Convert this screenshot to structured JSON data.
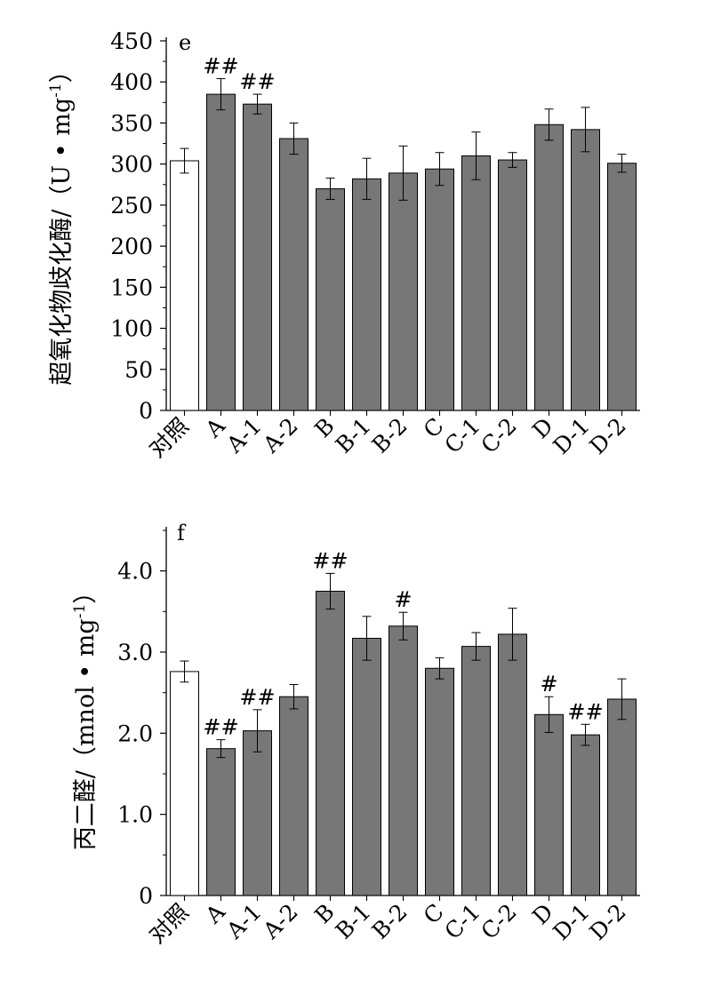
{
  "chart_data": [
    {
      "type": "bar",
      "panel_label": "e",
      "ylabel": "超氧化物歧化酶/（U • mg-1）",
      "ylabel_main": "超氧化物歧化酶/（U • mg",
      "ylabel_sup": "-1",
      "ylabel_close": "）",
      "categories": [
        "对照",
        "A",
        "A-1",
        "A-2",
        "B",
        "B-1",
        "B-2",
        "C",
        "C-1",
        "C-2",
        "D",
        "D-1",
        "D-2"
      ],
      "values": [
        304,
        385,
        373,
        331,
        270,
        282,
        289,
        294,
        310,
        305,
        348,
        342,
        301
      ],
      "errors": [
        15,
        19,
        12,
        19,
        13,
        25,
        33,
        20,
        29,
        9,
        19,
        27,
        11
      ],
      "significance": [
        "",
        "##",
        "##",
        "",
        "",
        "",
        "",
        "",
        "",
        "",
        "",
        "",
        ""
      ],
      "ylim": [
        0,
        450
      ],
      "yticks": [
        0,
        50,
        100,
        150,
        200,
        250,
        300,
        350,
        400,
        450
      ],
      "ytick_labels": [
        "0",
        "50",
        "100",
        "150",
        "200",
        "250",
        "300",
        "350",
        "400",
        "450"
      ],
      "grid": false,
      "colors": {
        "control": "#ffffff",
        "treatment": "#777777",
        "edge": "#000000"
      }
    },
    {
      "type": "bar",
      "panel_label": "f",
      "ylabel": "丙二醛/（mnol • mg-1）",
      "ylabel_main": "丙二醛/（mnol • mg",
      "ylabel_sup": "-1",
      "ylabel_close": "）",
      "categories": [
        "对照",
        "A",
        "A-1",
        "A-2",
        "B",
        "B-1",
        "B-2",
        "C",
        "C-1",
        "C-2",
        "D",
        "D-1",
        "D-2"
      ],
      "values": [
        2.76,
        1.81,
        2.03,
        2.45,
        3.75,
        3.17,
        3.32,
        2.8,
        3.07,
        3.22,
        2.23,
        1.98,
        2.42
      ],
      "errors": [
        0.13,
        0.11,
        0.26,
        0.15,
        0.22,
        0.27,
        0.17,
        0.13,
        0.17,
        0.32,
        0.22,
        0.13,
        0.25
      ],
      "significance": [
        "",
        "##",
        "##",
        "",
        "##",
        "",
        "#",
        "",
        "",
        "",
        "#",
        "##",
        ""
      ],
      "ylim": [
        0,
        4.5
      ],
      "yticks": [
        0,
        1,
        2,
        3,
        4
      ],
      "ytick_labels": [
        "0",
        "1.0",
        "2.0",
        "3.0",
        "4.0"
      ],
      "grid": false,
      "colors": {
        "control": "#ffffff",
        "treatment": "#777777",
        "edge": "#000000"
      }
    }
  ]
}
